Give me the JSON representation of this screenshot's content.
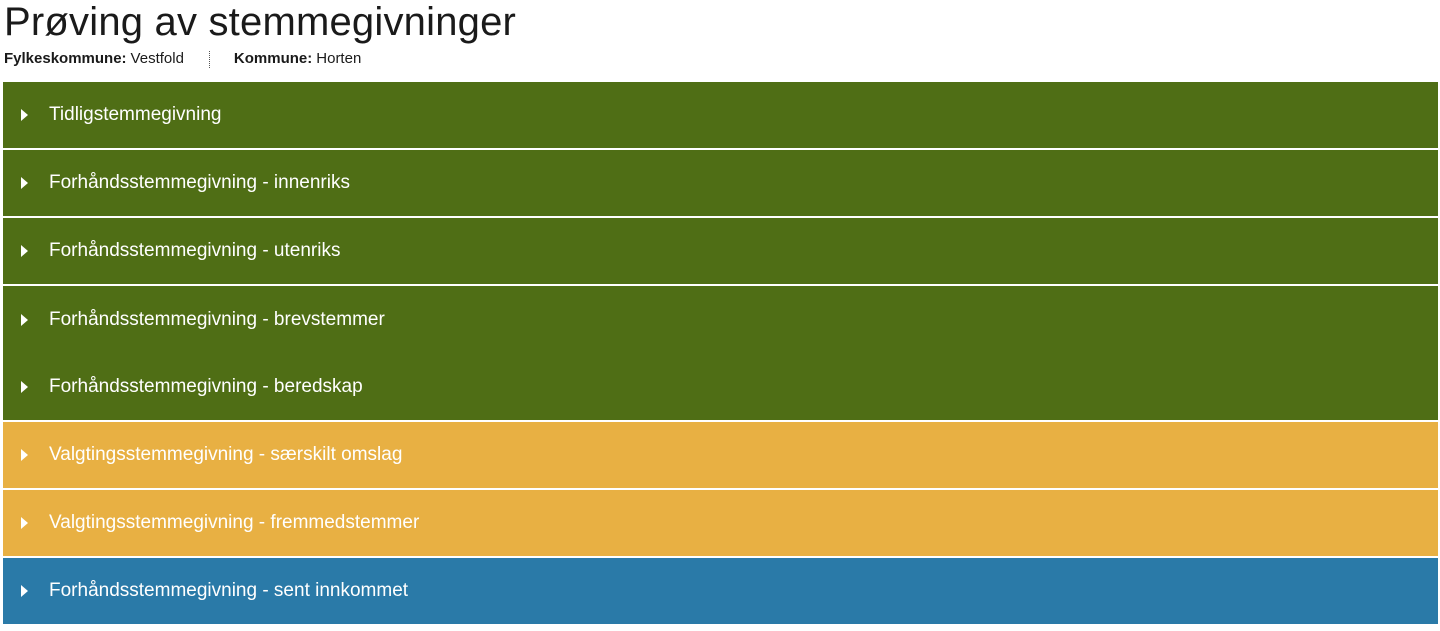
{
  "page": {
    "title": "Prøving av stemmegivninger"
  },
  "meta": {
    "fylkeskommune_label": "Fylkeskommune:",
    "fylkeskommune_value": "Vestfold",
    "kommune_label": "Kommune:",
    "kommune_value": "Horten"
  },
  "sections": [
    {
      "label": "Tidligstemmegivning",
      "color": "#4f6e15",
      "icon": "caret-right-icon"
    },
    {
      "label": "Forhåndsstemmegivning - innenriks",
      "color": "#4f6e15",
      "icon": "caret-right-icon"
    },
    {
      "label": "Forhåndsstemmegivning - utenriks",
      "color": "#4f6e15",
      "icon": "caret-right-icon"
    },
    {
      "label": "Forhåndsstemmegivning - brevstemmer",
      "color": "#4f6e15",
      "icon": "caret-right-icon"
    },
    {
      "label": "Forhåndsstemmegivning - beredskap",
      "color": "#4f6e15",
      "icon": "caret-right-icon"
    },
    {
      "label": "Valgtingsstemmegivning - særskilt omslag",
      "color": "#e8b043",
      "icon": "caret-right-icon"
    },
    {
      "label": "Valgtingsstemmegivning - fremmedstemmer",
      "color": "#e8b043",
      "icon": "caret-right-icon"
    },
    {
      "label": "Forhåndsstemmegivning - sent innkommet",
      "color": "#2a7aa8",
      "icon": "caret-right-icon"
    }
  ]
}
